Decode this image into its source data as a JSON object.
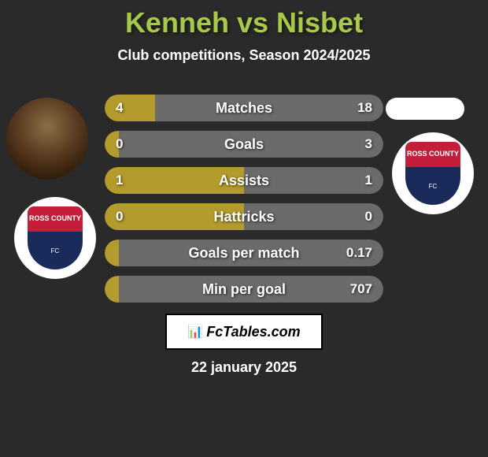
{
  "header": {
    "player1": "Kenneh",
    "vs": "vs",
    "player2": "Nisbet",
    "subtitle": "Club competitions, Season 2024/2025"
  },
  "club_badge": {
    "top_text": "ROSS COUNTY",
    "bottom_text": "FC"
  },
  "stats": [
    {
      "label": "Matches",
      "left_value": "4",
      "right_value": "18",
      "left_num": 4,
      "right_num": 18,
      "left_pct": 18,
      "right_pct": 82
    },
    {
      "label": "Goals",
      "left_value": "0",
      "right_value": "3",
      "left_num": 0,
      "right_num": 3,
      "left_pct": 5,
      "right_pct": 95
    },
    {
      "label": "Assists",
      "left_value": "1",
      "right_value": "1",
      "left_num": 1,
      "right_num": 1,
      "left_pct": 50,
      "right_pct": 50
    },
    {
      "label": "Hattricks",
      "left_value": "0",
      "right_value": "0",
      "left_num": 0,
      "right_num": 0,
      "left_pct": 50,
      "right_pct": 50
    },
    {
      "label": "Goals per match",
      "left_value": "",
      "right_value": "0.17",
      "left_num": 0,
      "right_num": 0.17,
      "left_pct": 5,
      "right_pct": 95
    },
    {
      "label": "Min per goal",
      "left_value": "",
      "right_value": "707",
      "left_num": 0,
      "right_num": 707,
      "left_pct": 5,
      "right_pct": 95
    }
  ],
  "colors": {
    "title_color": "#a8c84a",
    "background": "#2a2a2a",
    "left_bar": "#b39b2d",
    "right_bar": "#6b6b6b",
    "badge_red": "#c41e3a",
    "badge_blue": "#1a2a5a"
  },
  "brand": {
    "icon": "📊",
    "text": "FcTables.com"
  },
  "date": "22 january 2025"
}
